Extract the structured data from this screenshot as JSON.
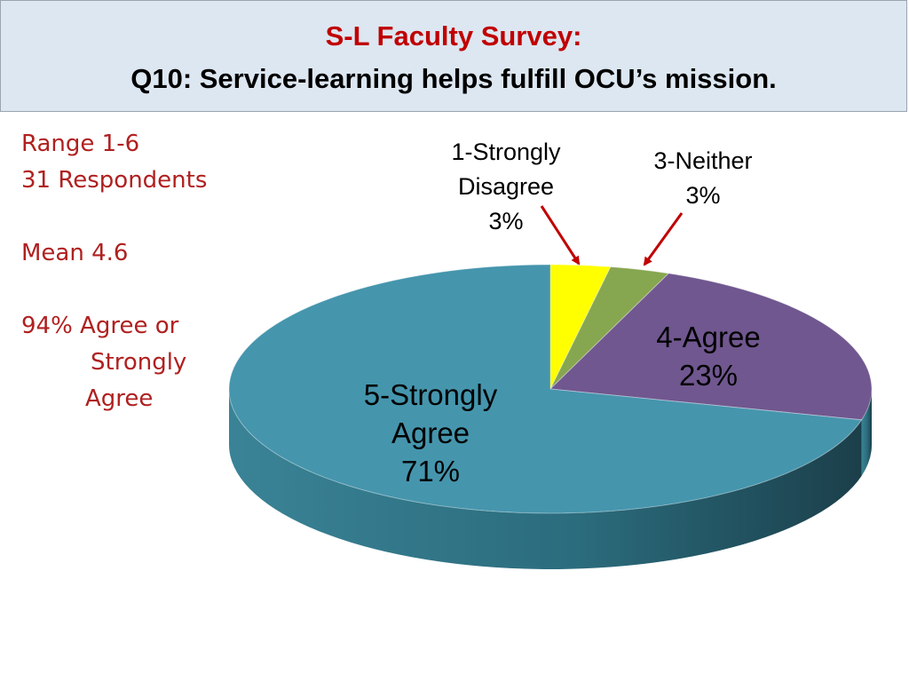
{
  "title": {
    "line1": "S-L Faculty Survey:",
    "line2": "Q10: Service-learning helps fulfill OCU’s mission."
  },
  "stats": {
    "range": "Range 1-6",
    "respondents": "31 Respondents",
    "mean": "Mean 4.6",
    "agree_line1": "94% Agree or",
    "agree_line2": "Strongly",
    "agree_line3": "Agree"
  },
  "chart_data": {
    "type": "pie",
    "style": "3d",
    "categories": [
      "1-Strongly Disagree",
      "3-Neither",
      "4-Agree",
      "5-Strongly Agree"
    ],
    "values": [
      3,
      3,
      23,
      71
    ],
    "labels": [
      {
        "lines": [
          "1-Strongly",
          "Disagree",
          "3%"
        ],
        "callout": true
      },
      {
        "lines": [
          "3-Neither",
          "3%"
        ],
        "callout": true
      },
      {
        "lines": [
          "4-Agree",
          "23%"
        ],
        "callout": false
      },
      {
        "lines": [
          "5-Strongly",
          "Agree",
          "71%"
        ],
        "callout": false
      }
    ],
    "colors": {
      "1-Strongly Disagree": "#ffff00",
      "3-Neither": "#87a650",
      "4-Agree": "#70578f",
      "5-Strongly Agree": "#4595ad"
    },
    "side_colors": {
      "5-Strongly Agree": "#25606f"
    },
    "callout_arrow_color": "#c00000",
    "legend": "none"
  }
}
